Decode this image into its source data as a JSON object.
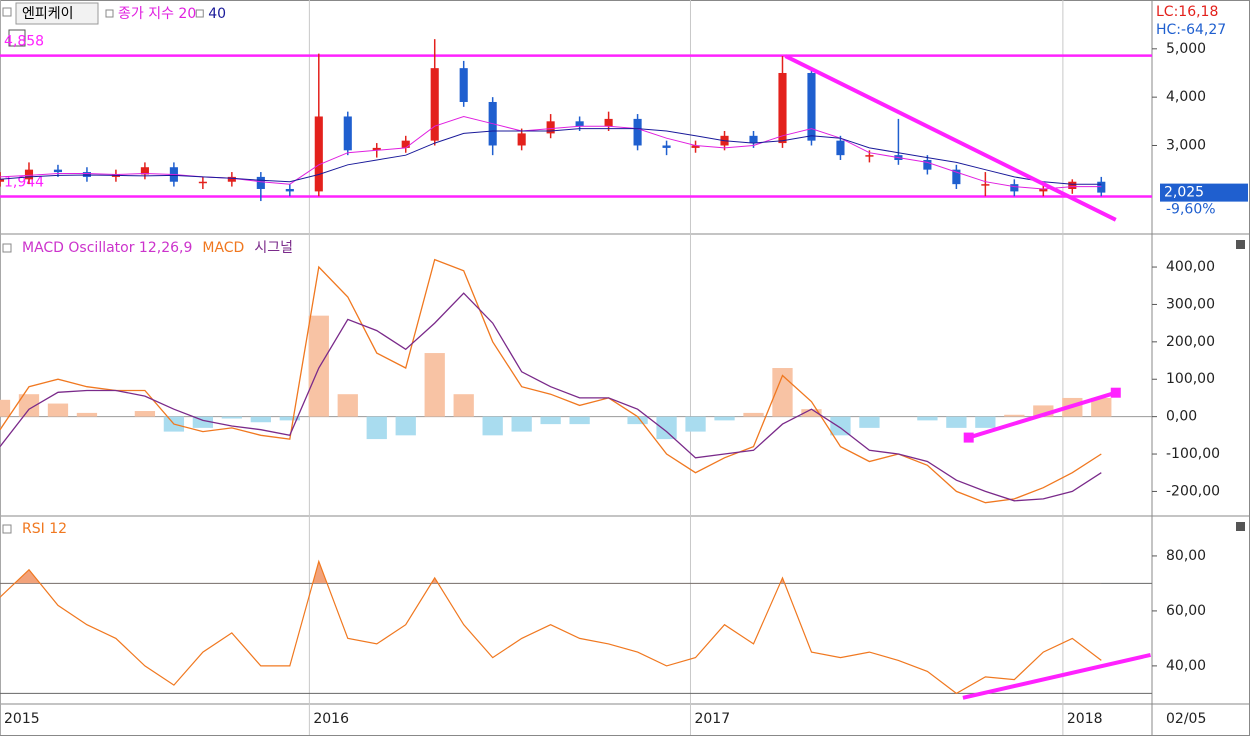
{
  "chart_data": [
    {
      "type": "candlestick",
      "title": "엔피케이",
      "x": [
        0,
        4,
        8,
        12,
        16,
        20,
        24,
        28,
        32,
        36,
        40,
        44,
        48,
        52,
        56,
        60,
        64,
        68,
        72,
        76,
        80,
        84,
        88,
        92,
        96,
        100,
        104,
        108,
        112,
        116,
        120,
        124,
        128,
        132,
        136,
        140,
        144,
        148,
        152
      ],
      "open": [
        2250,
        2300,
        2500,
        2450,
        2350,
        2400,
        2550,
        2250,
        2250,
        2350,
        2100,
        2050,
        3600,
        2900,
        2950,
        3100,
        4600,
        3900,
        3000,
        3250,
        3500,
        3400,
        3550,
        3000,
        2950,
        3000,
        3200,
        3050,
        4500,
        3100,
        2800,
        2800,
        2700,
        2500,
        2200,
        2200,
        2050,
        2100,
        2250
      ],
      "high": [
        2450,
        2650,
        2600,
        2550,
        2500,
        2650,
        2650,
        2350,
        2450,
        2450,
        2200,
        4900,
        3700,
        3050,
        3200,
        5200,
        4750,
        4000,
        3350,
        3650,
        3600,
        3700,
        3650,
        3100,
        3100,
        3300,
        3300,
        4850,
        4600,
        3200,
        2900,
        3550,
        2800,
        2600,
        2450,
        2300,
        2200,
        2300,
        2350
      ],
      "low": [
        2150,
        2200,
        2350,
        2250,
        2250,
        2300,
        2150,
        2100,
        2150,
        1850,
        1950,
        1950,
        2800,
        2750,
        2850,
        3000,
        3800,
        2800,
        2900,
        3150,
        3300,
        3300,
        2900,
        2800,
        2850,
        2900,
        2950,
        2950,
        3000,
        2700,
        2650,
        2600,
        2400,
        2100,
        1950,
        1950,
        1950,
        2000,
        1950
      ],
      "close": [
        2300,
        2500,
        2450,
        2350,
        2400,
        2550,
        2250,
        2250,
        2350,
        2100,
        2050,
        3600,
        2900,
        2950,
        3100,
        4600,
        3900,
        3000,
        3250,
        3500,
        3400,
        3550,
        3000,
        2950,
        3000,
        3200,
        3050,
        4500,
        3100,
        2800,
        2800,
        2700,
        2500,
        2200,
        2200,
        2050,
        2100,
        2250,
        2025
      ],
      "up_color": "#e3211c",
      "down_color": "#1f5fcf",
      "series": [
        {
          "name": "종가 지수 20",
          "color": "#e020e0",
          "values": [
            2350,
            2380,
            2420,
            2420,
            2400,
            2420,
            2400,
            2350,
            2320,
            2250,
            2200,
            2600,
            2850,
            2900,
            2950,
            3400,
            3600,
            3450,
            3300,
            3350,
            3400,
            3400,
            3350,
            3150,
            3000,
            2950,
            3000,
            3200,
            3350,
            3150,
            2850,
            2750,
            2650,
            2450,
            2250,
            2150,
            2100,
            2150,
            2150
          ]
        },
        {
          "name": "40",
          "color": "#1a1a9a",
          "values": [
            2300,
            2350,
            2380,
            2390,
            2380,
            2370,
            2380,
            2350,
            2320,
            2280,
            2250,
            2400,
            2600,
            2700,
            2800,
            3050,
            3250,
            3300,
            3300,
            3300,
            3350,
            3350,
            3350,
            3300,
            3200,
            3100,
            3050,
            3100,
            3200,
            3150,
            2950,
            2850,
            2750,
            2650,
            2500,
            2350,
            2250,
            2200,
            2200
          ]
        }
      ],
      "xlim": [
        0,
        159
      ],
      "ylim": [
        1210,
        6010
      ],
      "yticks": [
        {
          "value": 3000,
          "label": "3,000"
        },
        {
          "value": 4000,
          "label": "4,000"
        },
        {
          "value": 5000,
          "label": "5,000"
        }
      ],
      "hlines": [
        {
          "value": 4858,
          "label": "4,858"
        },
        {
          "value": 1944,
          "label": "1,944"
        }
      ],
      "hline_color": "#ff22ff",
      "trendlines": [
        {
          "x": [
            108.4,
            154
          ],
          "y": [
            4850,
            1463
          ]
        }
      ],
      "last_close": {
        "value": 2025,
        "label": "2,025"
      },
      "change_label": "-9,60%",
      "lc_label": "LC:16,18",
      "hc_label": "HC:-64,27"
    },
    {
      "type": "macd",
      "x": [
        0,
        4,
        8,
        12,
        16,
        20,
        24,
        28,
        32,
        36,
        40,
        44,
        48,
        52,
        56,
        60,
        64,
        68,
        72,
        76,
        80,
        84,
        88,
        92,
        96,
        100,
        104,
        108,
        112,
        116,
        120,
        124,
        128,
        132,
        136,
        140,
        144,
        148,
        152
      ],
      "series": [
        {
          "name": "MACD Oscillator 12,26,9",
          "color": "#cc33cc",
          "values": [
            45,
            60,
            35,
            10,
            0,
            15,
            -40,
            -30,
            -5,
            -15,
            -10,
            270,
            60,
            -60,
            -50,
            170,
            60,
            -50,
            -40,
            -20,
            -20,
            0,
            -20,
            -60,
            -40,
            -10,
            10,
            130,
            20,
            -50,
            -30,
            0,
            -10,
            -30,
            -30,
            5,
            30,
            50,
            50
          ]
        },
        {
          "name": "MACD",
          "color": "#f07820",
          "values": [
            -35,
            80,
            100,
            80,
            70,
            70,
            -20,
            -40,
            -30,
            -50,
            -60,
            400,
            320,
            170,
            130,
            420,
            390,
            200,
            80,
            60,
            30,
            50,
            0,
            -100,
            -150,
            -110,
            -80,
            110,
            40,
            -80,
            -120,
            -100,
            -130,
            -200,
            -230,
            -220,
            -190,
            -150,
            -100
          ]
        },
        {
          "name": "시그널",
          "color": "#7a2a8a",
          "values": [
            -80,
            20,
            65,
            70,
            70,
            55,
            20,
            -10,
            -25,
            -35,
            -50,
            130,
            260,
            230,
            180,
            250,
            330,
            250,
            120,
            80,
            50,
            50,
            20,
            -40,
            -110,
            -100,
            -90,
            -20,
            20,
            -30,
            -90,
            -100,
            -120,
            -170,
            -200,
            -225,
            -220,
            -200,
            -150
          ]
        }
      ],
      "positive_color": "#f8c3a4",
      "negative_color": "#a9dcef",
      "baseline": 0,
      "xlim": [
        0,
        159
      ],
      "ylim": [
        -263,
        483
      ],
      "yticks": [
        {
          "value": 400,
          "label": "400,00"
        },
        {
          "value": 300,
          "label": "300,00"
        },
        {
          "value": 200,
          "label": "200,00"
        },
        {
          "value": 100,
          "label": "100,00"
        },
        {
          "value": 0,
          "label": "0,00"
        },
        {
          "value": -100,
          "label": "-100,00"
        },
        {
          "value": -200,
          "label": "-200,00"
        }
      ],
      "trendlines": [
        {
          "x": [
            133.7,
            154
          ],
          "y": [
            -56,
            64
          ]
        }
      ]
    },
    {
      "type": "rsi",
      "title": "RSI 12",
      "color": "#f07820",
      "fill_color": "#f2a27a",
      "x": [
        0,
        4,
        8,
        12,
        16,
        20,
        24,
        28,
        32,
        36,
        40,
        44,
        48,
        52,
        56,
        60,
        64,
        68,
        72,
        76,
        80,
        84,
        88,
        92,
        96,
        100,
        104,
        108,
        112,
        116,
        120,
        124,
        128,
        132,
        136,
        140,
        144,
        148,
        152
      ],
      "values": [
        65,
        75,
        62,
        55,
        50,
        40,
        33,
        45,
        52,
        40,
        40,
        78,
        50,
        48,
        55,
        72,
        55,
        43,
        50,
        55,
        50,
        48,
        45,
        40,
        43,
        55,
        48,
        72,
        45,
        43,
        45,
        42,
        38,
        30,
        36,
        35,
        45,
        50,
        42
      ],
      "levels": [
        70,
        30
      ],
      "xlim": [
        0,
        159
      ],
      "ylim": [
        26.5,
        93.8
      ],
      "yticks": [
        {
          "value": 40,
          "label": "40,00"
        },
        {
          "value": 60,
          "label": "60,00"
        },
        {
          "value": 80,
          "label": "80,00"
        }
      ],
      "xticks": [
        {
          "value": 0,
          "label": "2015"
        },
        {
          "value": 42.7,
          "label": "2016"
        },
        {
          "value": 95.3,
          "label": "2017"
        },
        {
          "value": 146.7,
          "label": "2018"
        }
      ],
      "trendlines": [
        {
          "x": [
            132.9,
            158.8
          ],
          "y": [
            28.4,
            44
          ]
        }
      ],
      "last_date": "02/05"
    }
  ]
}
